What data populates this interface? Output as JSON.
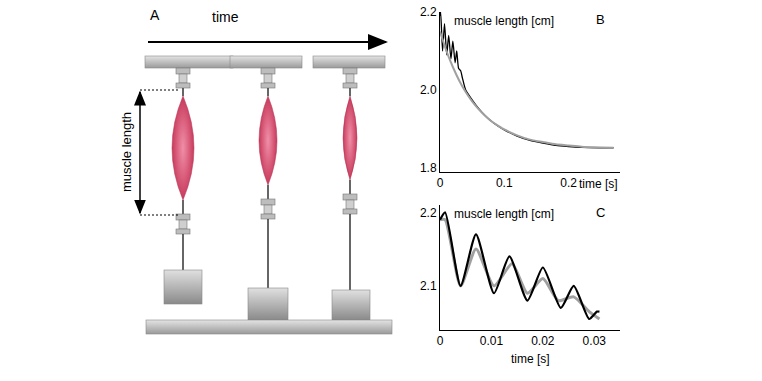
{
  "diagram": {
    "label": "A",
    "time_label": "time",
    "length_label": "muscle length"
  },
  "chart_data": [
    {
      "type": "line",
      "annotations": [
        "B"
      ],
      "ylabel": "muscle length [cm]",
      "xlabel": "time [s]",
      "xlim": [
        0,
        0.28
      ],
      "xticks": [
        0,
        0.1,
        0.2
      ],
      "ylim": [
        1.79,
        2.2
      ],
      "yticks": [
        1.8,
        {
          "value": 2,
          "label": "2.0"
        },
        2.2
      ],
      "series": [
        {
          "color": "#000000",
          "x": [
            0,
            0.001,
            0.004,
            0.007,
            0.0105,
            0.0135,
            0.017,
            0.02,
            0.0235,
            0.026,
            0.029,
            0.032,
            0.035,
            0.04,
            0.05,
            0.06,
            0.07,
            0.08,
            0.09,
            0.1,
            0.12,
            0.14,
            0.16,
            0.18,
            0.2,
            0.22,
            0.25,
            0.27
          ],
          "values": [
            2.19,
            2.2,
            2.1,
            2.17,
            2.09,
            2.14,
            2.08,
            2.125,
            2.07,
            2.1,
            2.055,
            2.05,
            2.03,
            2.0,
            1.975,
            1.953,
            1.935,
            1.92,
            1.908,
            1.898,
            1.882,
            1.871,
            1.864,
            1.858,
            1.855,
            1.853,
            1.852,
            1.852
          ]
        },
        {
          "color": "#a0a0a0",
          "x": [
            0,
            0.01,
            0.02,
            0.03,
            0.04,
            0.05,
            0.06,
            0.07,
            0.08,
            0.09,
            0.1,
            0.12,
            0.14,
            0.16,
            0.18,
            0.2,
            0.22,
            0.25,
            0.27
          ],
          "values": [
            2.15,
            2.1,
            2.059,
            2.024,
            1.995,
            1.971,
            1.951,
            1.934,
            1.92,
            1.909,
            1.899,
            1.884,
            1.873,
            1.867,
            1.861,
            1.858,
            1.855,
            1.853,
            1.852
          ]
        }
      ]
    },
    {
      "type": "line",
      "annotations": [
        "C"
      ],
      "ylabel": "muscle length [cm]",
      "xlabel": "time [s]",
      "xlim": [
        0,
        0.035
      ],
      "xticks": [
        0,
        0.01,
        0.02,
        0.03
      ],
      "ylim": [
        2.04,
        2.21
      ],
      "yticks": [
        2.1,
        2.2
      ],
      "series": [
        {
          "color": "#a0a0a0",
          "x": [
            0,
            0.001,
            0.004,
            0.007,
            0.0105,
            0.014,
            0.017,
            0.02,
            0.023,
            0.026,
            0.029,
            0.031
          ],
          "values": [
            2.19,
            2.19,
            2.1,
            2.15,
            2.1,
            2.13,
            2.09,
            2.11,
            2.08,
            2.085,
            2.065,
            2.055
          ]
        },
        {
          "color": "#000000",
          "x": [
            0,
            0.001,
            0.004,
            0.007,
            0.0105,
            0.0135,
            0.017,
            0.02,
            0.0235,
            0.026,
            0.029,
            0.0305,
            0.031
          ],
          "values": [
            2.19,
            2.2,
            2.1,
            2.17,
            2.09,
            2.14,
            2.08,
            2.125,
            2.07,
            2.1,
            2.055,
            2.065,
            2.065
          ]
        }
      ]
    }
  ]
}
